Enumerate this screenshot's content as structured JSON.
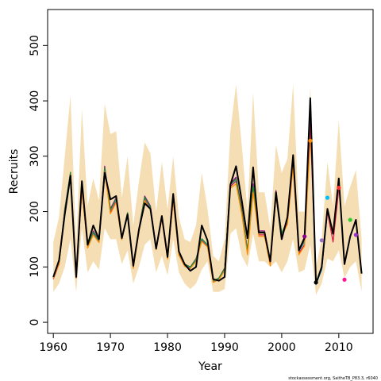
{
  "chart_data": {
    "type": "line",
    "title": "",
    "xlabel": "Year",
    "ylabel": "Recruits",
    "xlim": [
      1959,
      2016
    ],
    "ylim": [
      -20,
      565
    ],
    "xticks": [
      1960,
      1970,
      1980,
      1990,
      2000,
      2010
    ],
    "yticks": [
      0,
      100,
      200,
      300,
      400,
      500
    ],
    "footnote": "stockassessment.org, SaitheTB_P83.3, r6040",
    "band": {
      "color": "#f5deb3",
      "x": [
        1960,
        1961,
        1962,
        1963,
        1964,
        1965,
        1966,
        1967,
        1968,
        1969,
        1970,
        1971,
        1972,
        1973,
        1974,
        1975,
        1976,
        1977,
        1978,
        1979,
        1980,
        1981,
        1982,
        1983,
        1984,
        1985,
        1986,
        1987,
        1988,
        1989,
        1990,
        1991,
        1992,
        1993,
        1994,
        1995,
        1996,
        1997,
        1998,
        1999,
        2000,
        2001,
        2002,
        2003,
        2004,
        2005,
        2006,
        2007,
        2008,
        2009,
        2010,
        2011,
        2012,
        2013,
        2014
      ],
      "lower": [
        55,
        70,
        100,
        150,
        55,
        170,
        90,
        110,
        95,
        170,
        150,
        150,
        105,
        130,
        70,
        100,
        140,
        150,
        90,
        120,
        85,
        150,
        90,
        70,
        60,
        70,
        95,
        110,
        55,
        55,
        60,
        160,
        170,
        120,
        100,
        160,
        110,
        110,
        100,
        110,
        90,
        110,
        150,
        90,
        95,
        140,
        50,
        70,
        115,
        110,
        130,
        80,
        100,
        110,
        55
      ],
      "upper": [
        145,
        190,
        300,
        410,
        140,
        385,
        210,
        260,
        220,
        395,
        340,
        345,
        225,
        300,
        175,
        255,
        325,
        305,
        200,
        290,
        205,
        300,
        190,
        150,
        145,
        175,
        270,
        205,
        120,
        110,
        150,
        345,
        430,
        320,
        200,
        415,
        235,
        235,
        170,
        320,
        270,
        295,
        430,
        200,
        200,
        425,
        100,
        150,
        290,
        210,
        365,
        210,
        245,
        275,
        150
      ]
    },
    "series": [
      {
        "name": "",
        "color": "#000000",
        "width": 2,
        "x": [
          1960,
          1961,
          1962,
          1963,
          1964,
          1965,
          1966,
          1967,
          1968,
          1969,
          1970,
          1971,
          1972,
          1973,
          1974,
          1975,
          1976,
          1977,
          1978,
          1979,
          1980,
          1981,
          1982,
          1983,
          1984,
          1985,
          1986,
          1987,
          1988,
          1989,
          1990,
          1991,
          1992,
          1993,
          1994,
          1995,
          1996,
          1997,
          1998,
          1999,
          2000,
          2001,
          2002,
          2003,
          2004,
          2005,
          2006,
          2007,
          2008,
          2009,
          2010,
          2011,
          2012,
          2013,
          2014
        ],
        "values": [
          82,
          112,
          195,
          265,
          82,
          255,
          140,
          175,
          150,
          270,
          222,
          228,
          152,
          195,
          102,
          168,
          215,
          205,
          133,
          192,
          118,
          232,
          128,
          105,
          93,
          100,
          175,
          148,
          78,
          75,
          82,
          248,
          282,
          220,
          152,
          280,
          162,
          162,
          110,
          235,
          150,
          190,
          302,
          130,
          152,
          405,
          70,
          100,
          205,
          160,
          260,
          105,
          155,
          185,
          88
        ]
      },
      {
        "name": "",
        "color": "#8b008b",
        "width": 1.2,
        "x": [
          1960,
          1961,
          1962,
          1963,
          1964,
          1965,
          1966,
          1967,
          1968,
          1969,
          1970,
          1971,
          1972,
          1973,
          1974,
          1975,
          1976,
          1977,
          1978,
          1979,
          1980,
          1981,
          1982,
          1983,
          1984,
          1985,
          1986,
          1987,
          1988,
          1989,
          1990,
          1991,
          1992,
          1993,
          1994,
          1995,
          1996,
          1997,
          1998,
          1999,
          2000,
          2001,
          2002,
          2003,
          2004
        ],
        "values": [
          80,
          108,
          205,
          270,
          82,
          245,
          138,
          165,
          148,
          282,
          205,
          225,
          152,
          198,
          100,
          170,
          228,
          210,
          135,
          192,
          118,
          225,
          125,
          105,
          100,
          115,
          150,
          140,
          74,
          80,
          98,
          250,
          262,
          205,
          130,
          250,
          165,
          165,
          110,
          238,
          160,
          185,
          292,
          130,
          155
        ]
      },
      {
        "name": "",
        "color": "#dc143c",
        "width": 1.2,
        "x": [
          1960,
          1961,
          1962,
          1963,
          1964,
          1965,
          1966,
          1967,
          1968,
          1969,
          1970,
          1971,
          1972,
          1973,
          1974,
          1975,
          1976,
          1977,
          1978,
          1979,
          1980,
          1981,
          1982,
          1983,
          1984,
          1985,
          1986,
          1987,
          1988,
          1989,
          1990,
          1991,
          1992,
          1993,
          1994,
          1995,
          1996,
          1997,
          1998,
          1999,
          2000,
          2001,
          2002,
          2003,
          2004,
          2005,
          2006,
          2007,
          2008,
          2009,
          2010
        ],
        "values": [
          78,
          105,
          200,
          268,
          80,
          240,
          135,
          160,
          145,
          275,
          198,
          218,
          150,
          195,
          98,
          165,
          222,
          205,
          132,
          188,
          115,
          220,
          122,
          102,
          98,
          112,
          148,
          138,
          73,
          78,
          95,
          245,
          255,
          198,
          125,
          238,
          158,
          158,
          105,
          230,
          158,
          180,
          285,
          125,
          140,
          360,
          72,
          95,
          200,
          145,
          240
        ]
      },
      {
        "name": "",
        "color": "#1e90ff",
        "width": 1.2,
        "x": [
          1960,
          1961,
          1962,
          1963,
          1964,
          1965,
          1966,
          1967,
          1968,
          1969,
          1970,
          1971,
          1972,
          1973,
          1974,
          1975,
          1976,
          1977,
          1978,
          1979,
          1980,
          1981,
          1982,
          1983,
          1984,
          1985,
          1986,
          1987,
          1988,
          1989,
          1990,
          1991,
          1992,
          1993,
          1994,
          1995,
          1996,
          1997,
          1998,
          1999,
          2000,
          2001,
          2002,
          2003,
          2004,
          2005,
          2006,
          2007,
          2008
        ],
        "values": [
          80,
          107,
          202,
          270,
          81,
          242,
          137,
          162,
          147,
          278,
          202,
          222,
          151,
          197,
          99,
          168,
          225,
          207,
          134,
          190,
          117,
          222,
          124,
          104,
          99,
          113,
          150,
          139,
          74,
          79,
          96,
          248,
          258,
          200,
          128,
          245,
          162,
          162,
          108,
          234,
          160,
          183,
          288,
          128,
          145,
          385,
          68,
          95,
          200
        ]
      },
      {
        "name": "",
        "color": "#228b22",
        "width": 1.2,
        "x": [
          1960,
          1961,
          1962,
          1963,
          1964,
          1965,
          1966,
          1967,
          1968,
          1969,
          1970,
          1971,
          1972,
          1973,
          1974,
          1975,
          1976,
          1977,
          1978,
          1979,
          1980,
          1981,
          1982,
          1983,
          1984,
          1985,
          1986,
          1987,
          1988,
          1989,
          1990,
          1991,
          1992,
          1993,
          1994,
          1995,
          1996,
          1997,
          1998,
          1999,
          2000,
          2001,
          2002,
          2003,
          2004,
          2005,
          2006,
          2007
        ],
        "values": [
          81,
          109,
          203,
          271,
          82,
          243,
          138,
          163,
          148,
          279,
          203,
          223,
          152,
          198,
          100,
          169,
          226,
          208,
          135,
          191,
          118,
          223,
          125,
          105,
          100,
          114,
          151,
          140,
          75,
          80,
          97,
          249,
          259,
          201,
          129,
          246,
          163,
          163,
          109,
          235,
          161,
          184,
          290,
          129,
          148,
          395,
          69,
          97
        ]
      },
      {
        "name": "",
        "color": "#ff8c00",
        "width": 1.2,
        "x": [
          1960,
          1961,
          1962,
          1963,
          1964,
          1965,
          1966,
          1967,
          1968,
          1969,
          1970,
          1971,
          1972,
          1973,
          1974,
          1975,
          1976,
          1977,
          1978,
          1979,
          1980,
          1981,
          1982,
          1983,
          1984,
          1985,
          1986,
          1987,
          1988,
          1989,
          1990,
          1991,
          1992,
          1993,
          1994,
          1995,
          1996,
          1997,
          1998,
          1999,
          2000,
          2001,
          2002,
          2003,
          2004,
          2005
        ],
        "values": [
          79,
          106,
          198,
          266,
          80,
          238,
          134,
          158,
          144,
          272,
          196,
          216,
          149,
          193,
          97,
          163,
          220,
          203,
          131,
          186,
          114,
          218,
          121,
          101,
          97,
          110,
          146,
          136,
          72,
          77,
          93,
          242,
          250,
          195,
          122,
          235,
          155,
          155,
          102,
          226,
          155,
          177,
          280,
          122,
          138,
          328
        ]
      }
    ],
    "points": [
      {
        "x": 2004,
        "y": 155,
        "color": "#8b008b"
      },
      {
        "x": 2005,
        "y": 328,
        "color": "#ff8c00"
      },
      {
        "x": 2006,
        "y": 72,
        "color": "#000000"
      },
      {
        "x": 2007,
        "y": 148,
        "color": "#a070c0"
      },
      {
        "x": 2008,
        "y": 225,
        "color": "#00bfff"
      },
      {
        "x": 2010,
        "y": 243,
        "color": "#ff3030"
      },
      {
        "x": 2011,
        "y": 77,
        "color": "#ff1493"
      },
      {
        "x": 2012,
        "y": 185,
        "color": "#32cd32"
      },
      {
        "x": 2013,
        "y": 158,
        "color": "#9932cc"
      }
    ]
  }
}
